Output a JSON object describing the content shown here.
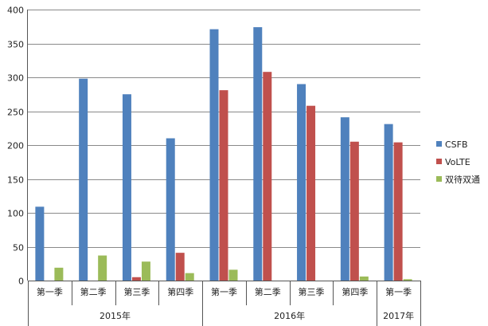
{
  "chart_data": {
    "type": "bar",
    "ylim": [
      0,
      400
    ],
    "yticks": [
      0,
      50,
      100,
      150,
      200,
      250,
      300,
      350,
      400
    ],
    "grid": true,
    "legend_position": "right",
    "categories": [
      "第一季",
      "第二季",
      "第三季",
      "第四季",
      "第一季",
      "第二季",
      "第三季",
      "第四季",
      "第一季"
    ],
    "groups": [
      {
        "label": "2015年",
        "count": 4
      },
      {
        "label": "2016年",
        "count": 4
      },
      {
        "label": "2017年",
        "count": 1
      }
    ],
    "series": [
      {
        "name": "CSFB",
        "color": "#4F81BD",
        "values": [
          109,
          298,
          275,
          210,
          371,
          374,
          290,
          241,
          231
        ]
      },
      {
        "name": "VoLTE",
        "color": "#C0504D",
        "values": [
          0,
          0,
          5,
          41,
          281,
          308,
          258,
          205,
          204
        ]
      },
      {
        "name": "双待双通",
        "color": "#9BBB59",
        "values": [
          19,
          37,
          28,
          11,
          16,
          0,
          0,
          6,
          2
        ]
      }
    ]
  }
}
